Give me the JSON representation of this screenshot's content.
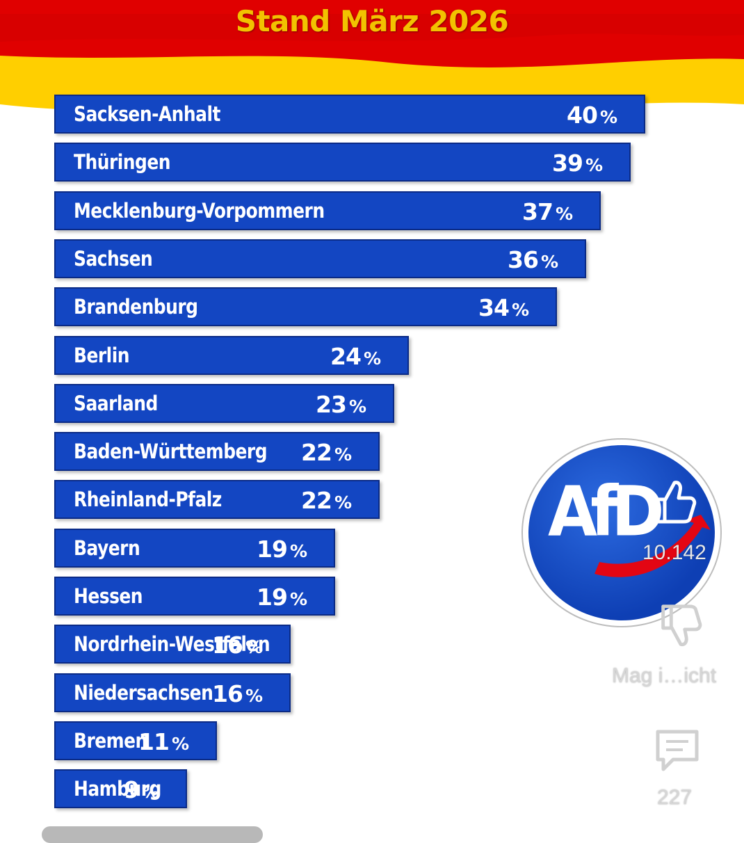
{
  "title": "Stand März 2026",
  "colors": {
    "bar": "#1346c2",
    "flag_black": "#1a1a1a",
    "flag_red": "#dd0000",
    "flag_gold": "#ffcc00",
    "logo_blue": "#0e3fb4",
    "logo_red": "#e30613"
  },
  "chart_data": {
    "type": "bar",
    "orientation": "horizontal",
    "title": "Stand März 2026",
    "categories": [
      "Sacksen-Anhalt",
      "Thüringen",
      "Mecklenburg-Vorpommern",
      "Sachsen",
      "Brandenburg",
      "Berlin",
      "Saarland",
      "Baden-Württemberg",
      "Rheinland-Pfalz",
      "Bayern",
      "Hessen",
      "Nordrhein-Westfalen",
      "Niedersachsen",
      "Bremen",
      "Hamburg"
    ],
    "values": [
      40,
      39,
      37,
      36,
      34,
      24,
      23,
      22,
      22,
      19,
      19,
      16,
      16,
      11,
      9
    ],
    "value_labels": [
      "40",
      "39",
      "37",
      "36",
      "34",
      "24",
      "23",
      "22",
      "22",
      "19",
      "19",
      "16",
      "16",
      "11",
      "9"
    ],
    "unit": "%",
    "grid": false
  },
  "logo": {
    "text": "AfD"
  },
  "side_actions": {
    "like_count": "10.142",
    "dislike_label": "Mag i…icht",
    "comment_count": "227"
  }
}
